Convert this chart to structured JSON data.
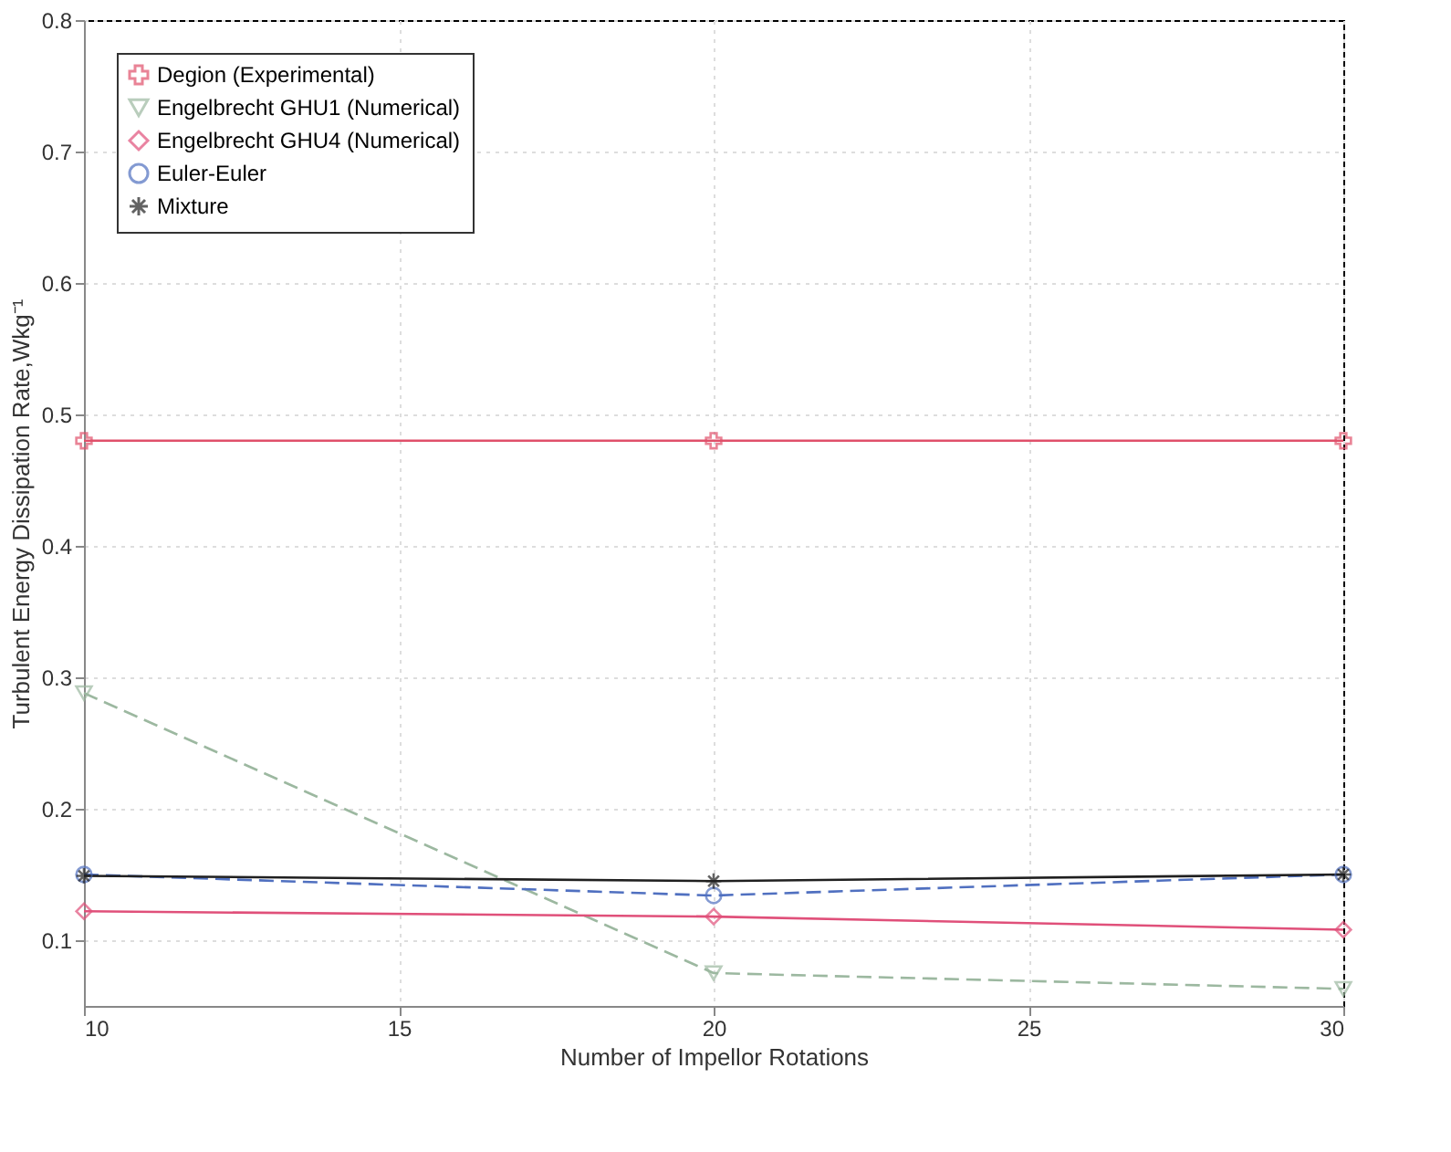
{
  "chart_data": {
    "type": "line",
    "xlabel": "Number of Impellor Rotations",
    "ylabel": "Turbulent Energy Dissipation Rate,Wkg⁻¹",
    "x": [
      10,
      20,
      30
    ],
    "xlim": [
      10,
      30
    ],
    "xticks": [
      10,
      15,
      20,
      25,
      30
    ],
    "ylim": [
      0.05,
      0.8
    ],
    "yticks": [
      0.1,
      0.2,
      0.3,
      0.4,
      0.5,
      0.6,
      0.7,
      0.8
    ],
    "grid": true,
    "legend": "top left",
    "series": [
      {
        "name": "Degion (Experimental)",
        "color": "#e0506a",
        "values": [
          0.48,
          0.48,
          0.48
        ],
        "marker": "cross",
        "line_style": "solid"
      },
      {
        "name": "Engelbrecht GHU1 (Numerical)",
        "color": "#9cb8a0",
        "values": [
          0.288,
          0.075,
          0.063
        ],
        "marker": "triangle",
        "line_style": "dashed"
      },
      {
        "name": "Engelbrecht GHU4 (Numerical)",
        "color": "#e0507a",
        "values": [
          0.122,
          0.118,
          0.108
        ],
        "marker": "diamond",
        "line_style": "solid"
      },
      {
        "name": "Euler-Euler",
        "color": "#5070c0",
        "values": [
          0.15,
          0.134,
          0.15
        ],
        "marker": "circle",
        "line_style": "dashed"
      },
      {
        "name": "Mixture",
        "color": "#202020",
        "values": [
          0.149,
          0.145,
          0.15
        ],
        "marker": "cross",
        "line_style": "solid"
      }
    ]
  }
}
